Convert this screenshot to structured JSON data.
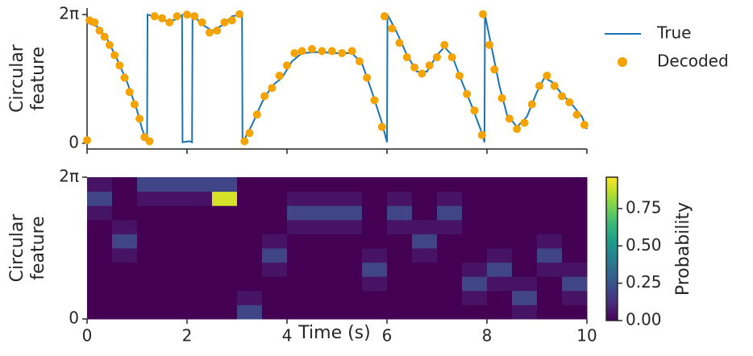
{
  "chart_data": [
    {
      "type": "line",
      "ylabel": [
        "Circular",
        "feature"
      ],
      "xlim": [
        0,
        10
      ],
      "xticks": [
        0,
        2,
        4,
        6,
        8,
        10
      ],
      "ylim": [
        -0.28,
        6.6
      ],
      "yticks": [
        0,
        {
          "value": 6.283,
          "label": "2π"
        }
      ],
      "legend": "outside-right",
      "series": [
        {
          "name": "True",
          "type": "line",
          "color": "#1a74b0",
          "x": [
            0,
            0.2,
            0.4,
            0.6,
            0.8,
            1.0,
            1.1,
            1.2,
            1.21,
            1.4,
            1.6,
            1.8,
            1.9,
            1.91,
            2.05,
            2.1,
            2.11,
            2.3,
            2.5,
            2.7,
            2.9,
            3.1,
            3.11,
            3.3,
            3.5,
            3.7,
            3.9,
            4.1,
            4.3,
            4.6,
            5.0,
            5.3,
            5.5,
            5.7,
            5.9,
            6.0,
            6.01,
            6.2,
            6.4,
            6.6,
            6.8,
            7.0,
            7.15,
            7.3,
            7.5,
            7.7,
            7.9,
            7.95,
            7.96,
            8.1,
            8.25,
            8.4,
            8.6,
            8.8,
            9.0,
            9.15,
            9.3,
            9.5,
            9.7,
            9.9,
            10.0
          ],
          "values": [
            5.9,
            5.7,
            5.1,
            4.1,
            3.0,
            1.6,
            0.7,
            0.05,
            6.28,
            6.15,
            5.95,
            6.05,
            6.25,
            0.05,
            0.1,
            0.05,
            6.28,
            5.8,
            5.5,
            5.75,
            6.2,
            6.28,
            0.02,
            0.9,
            2.0,
            2.8,
            3.2,
            4.0,
            4.4,
            4.45,
            4.4,
            4.4,
            3.9,
            2.5,
            1.0,
            0.05,
            6.28,
            5.4,
            4.3,
            3.5,
            3.5,
            4.3,
            4.7,
            4.3,
            3.0,
            1.8,
            0.5,
            0.05,
            6.28,
            4.6,
            2.8,
            1.4,
            0.8,
            1.3,
            2.5,
            3.2,
            3.0,
            2.4,
            1.9,
            1.3,
            0.7
          ]
        },
        {
          "name": "Decoded",
          "type": "scatter",
          "color": "#f5a300",
          "x": [
            0,
            0.05,
            0.15,
            0.25,
            0.35,
            0.45,
            0.55,
            0.65,
            0.75,
            0.85,
            0.95,
            1.05,
            1.15,
            1.25,
            1.35,
            1.5,
            1.65,
            1.8,
            2.0,
            2.15,
            2.3,
            2.45,
            2.6,
            2.75,
            2.9,
            3.05,
            3.15,
            3.25,
            3.4,
            3.55,
            3.7,
            3.85,
            4.0,
            4.15,
            4.3,
            4.5,
            4.7,
            4.9,
            5.1,
            5.3,
            5.45,
            5.6,
            5.75,
            5.9,
            5.95,
            6.1,
            6.25,
            6.4,
            6.55,
            6.7,
            6.85,
            7.0,
            7.15,
            7.3,
            7.45,
            7.6,
            7.75,
            7.9,
            7.92,
            8.05,
            8.15,
            8.3,
            8.45,
            8.6,
            8.75,
            8.9,
            9.05,
            9.2,
            9.35,
            9.5,
            9.65,
            9.8,
            9.95
          ],
          "values": [
            0.15,
            6.0,
            5.9,
            5.5,
            5.2,
            4.8,
            4.3,
            3.8,
            3.2,
            2.5,
            1.9,
            1.2,
            0.3,
            0.1,
            6.2,
            6.1,
            5.9,
            6.2,
            6.28,
            6.2,
            5.9,
            5.4,
            5.5,
            5.9,
            6.0,
            6.3,
            0.1,
            0.5,
            1.4,
            2.3,
            2.7,
            3.3,
            3.8,
            4.4,
            4.5,
            4.6,
            4.5,
            4.5,
            4.4,
            4.5,
            4.0,
            3.2,
            2.1,
            0.8,
            6.2,
            5.6,
            4.9,
            4.2,
            3.7,
            3.4,
            3.8,
            4.2,
            4.8,
            4.2,
            3.3,
            2.4,
            1.6,
            0.4,
            6.3,
            4.8,
            3.6,
            2.2,
            1.2,
            0.7,
            1.0,
            1.9,
            2.8,
            3.3,
            2.8,
            2.3,
            2.0,
            1.4,
            0.9
          ]
        }
      ]
    },
    {
      "type": "heatmap",
      "ylabel": [
        "Circular",
        "feature"
      ],
      "xlabel": "Time (s)",
      "xlim": [
        0,
        10
      ],
      "xticks": [
        0,
        2,
        4,
        6,
        8,
        10
      ],
      "ylim": [
        0,
        6.283
      ],
      "yticks": [
        0,
        {
          "value": 6.283,
          "label": "2π"
        }
      ],
      "colormap": "viridis",
      "colorbar_label": "Probability",
      "clim": [
        0,
        0.96
      ],
      "cticks": [
        {
          "value": 0,
          "label": "0.00"
        },
        0.25,
        {
          "value": 0.5,
          "label": "0.50"
        },
        0.75
      ],
      "z": [
        [
          0,
          0,
          0,
          0,
          0,
          0,
          0.2,
          0,
          0,
          0,
          0,
          0,
          0,
          0,
          0,
          0,
          0,
          0.05,
          0,
          0
        ],
        [
          0,
          0,
          0,
          0,
          0,
          0,
          0.05,
          0,
          0,
          0,
          0,
          0,
          0,
          0,
          0,
          0.05,
          0,
          0.2,
          0,
          0.05
        ],
        [
          0,
          0,
          0,
          0,
          0,
          0,
          0,
          0,
          0,
          0,
          0,
          0.05,
          0,
          0,
          0,
          0.2,
          0.05,
          0.05,
          0,
          0.2
        ],
        [
          0,
          0,
          0,
          0,
          0,
          0,
          0,
          0.05,
          0,
          0,
          0,
          0.2,
          0,
          0,
          0,
          0.05,
          0.2,
          0,
          0.05,
          0.05
        ],
        [
          0,
          0.05,
          0,
          0,
          0,
          0,
          0,
          0.2,
          0,
          0,
          0,
          0.05,
          0,
          0.05,
          0,
          0,
          0.05,
          0,
          0.2,
          0
        ],
        [
          0,
          0.2,
          0,
          0,
          0,
          0,
          0,
          0.05,
          0,
          0,
          0,
          0,
          0,
          0.2,
          0,
          0,
          0,
          0,
          0.05,
          0
        ],
        [
          0,
          0.05,
          0,
          0,
          0,
          0,
          0,
          0,
          0.05,
          0.05,
          0.05,
          0,
          0.05,
          0.05,
          0.05,
          0,
          0,
          0,
          0,
          0
        ],
        [
          0.05,
          0,
          0,
          0,
          0,
          0,
          0,
          0,
          0.2,
          0.2,
          0.2,
          0,
          0.2,
          0,
          0.2,
          0,
          0,
          0,
          0,
          0
        ],
        [
          0.2,
          0,
          0.05,
          0.05,
          0.05,
          0.9,
          0,
          0,
          0.05,
          0.05,
          0.05,
          0,
          0.05,
          0,
          0.05,
          0,
          0,
          0,
          0,
          0
        ],
        [
          0.05,
          0,
          0.2,
          0.2,
          0.2,
          0.2,
          0,
          0,
          0,
          0,
          0,
          0,
          0,
          0,
          0,
          0,
          0,
          0,
          0,
          0
        ]
      ]
    }
  ]
}
